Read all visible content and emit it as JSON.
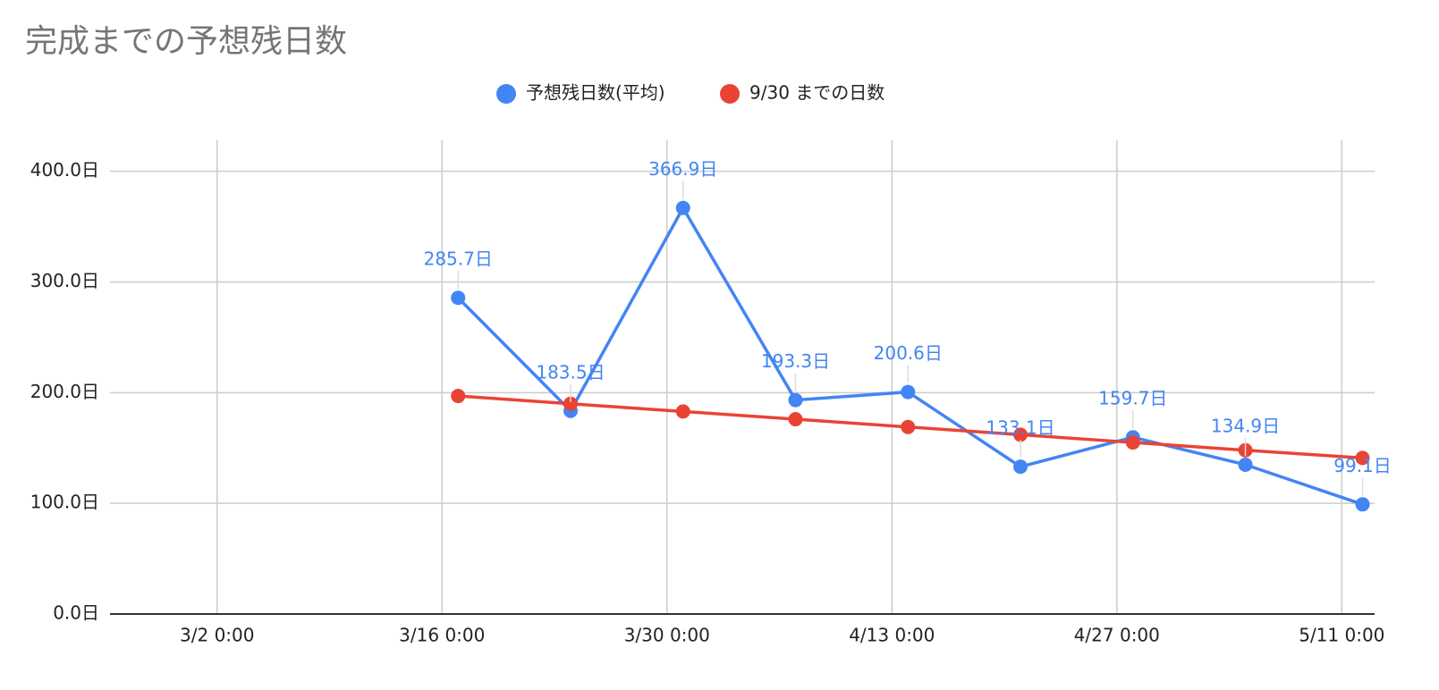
{
  "chart_data": {
    "type": "line",
    "title": "完成までの予想残日数",
    "x": [
      "3/17 0:00",
      "3/24 0:00",
      "3/31 0:00",
      "4/7 0:00",
      "4/14 0:00",
      "4/21 0:00",
      "4/28 0:00",
      "5/5 0:00",
      "5/12 7:00"
    ],
    "series": [
      {
        "name": "予想残日数(平均)",
        "color": "#4285f4",
        "values": [
          285.7,
          183.5,
          366.9,
          193.3,
          200.6,
          133.1,
          159.7,
          134.9,
          99.1
        ],
        "value_labels": [
          "285.7日",
          "183.5日",
          "366.9日",
          "193.3日",
          "200.6日",
          "133.1日",
          "159.7日",
          "134.9日",
          "99.1日"
        ]
      },
      {
        "name": "9/30 までの日数",
        "color": "#ea4335",
        "values": [
          197,
          190,
          183,
          176,
          169,
          162,
          155,
          148,
          141
        ]
      }
    ],
    "xlim": [
      "2/24 8:00",
      "5/13 1:00"
    ],
    "xticks": [
      "3/2 0:00",
      "3/16 0:00",
      "3/30 0:00",
      "4/13 0:00",
      "4/27 0:00",
      "5/11 0:00"
    ],
    "ylim": [
      0,
      428
    ],
    "yticks": [
      {
        "value": 0,
        "label": "0.0日"
      },
      {
        "value": 100,
        "label": "100.0日"
      },
      {
        "value": 200,
        "label": "200.0日"
      },
      {
        "value": 300,
        "label": "300.0日"
      },
      {
        "value": 400,
        "label": "400.0日"
      }
    ],
    "grid": true,
    "legend": "top"
  }
}
